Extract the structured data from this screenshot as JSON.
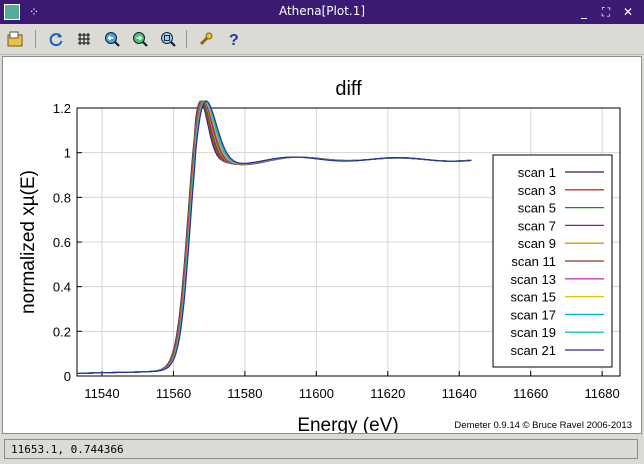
{
  "window": {
    "title": "Athena[Plot.1]"
  },
  "titlebar_buttons": {
    "minimize": "_",
    "maximize": "⛶",
    "close": "✕"
  },
  "toolbar": {
    "items": [
      {
        "name": "open-file-icon"
      },
      {
        "name": "refresh-icon"
      },
      {
        "name": "grid-icon"
      },
      {
        "name": "zoom-in-icon"
      },
      {
        "name": "zoom-out-icon"
      },
      {
        "name": "zoom-reset-icon"
      },
      {
        "name": "settings-wrench-icon"
      },
      {
        "name": "help-icon"
      }
    ]
  },
  "status": {
    "coords": "11653.1, 0.744366"
  },
  "colors": {
    "titlebar": "#3b1a73",
    "background": "#dcdad5",
    "plot_bg": "#ffffff",
    "grid": "#d6d6d6"
  },
  "chart_data": {
    "type": "line",
    "title": "diff",
    "xlabel": "Energy    (eV)",
    "ylabel": "normalized xµ(E)",
    "xlim": [
      11533,
      11685
    ],
    "ylim": [
      0,
      1.2
    ],
    "xticks": [
      11540,
      11560,
      11580,
      11600,
      11620,
      11640,
      11660,
      11680
    ],
    "yticks": [
      0,
      0.2,
      0.4,
      0.6,
      0.8,
      1,
      1.2
    ],
    "xtick_labels": [
      "11540",
      "11560",
      "11580",
      "11600",
      "11620",
      "11640",
      "11660",
      "11680"
    ],
    "ytick_labels": [
      "0",
      "0.2",
      "0.4",
      "0.6",
      "0.8",
      "1",
      "1.2"
    ],
    "grid": true,
    "legend_position": "right",
    "credit": "Demeter 0.9.14 © Bruce Ravel 2006-2013",
    "series": [
      {
        "name": "scan 1",
        "color": "#1a1a8c",
        "edge_shift": 0.0,
        "peak": 1.19,
        "damp": 0.0
      },
      {
        "name": "scan 3",
        "color": "#c03030",
        "edge_shift": 0.1,
        "peak": 1.19,
        "damp": 0.1
      },
      {
        "name": "scan 5",
        "color": "#1f8a1f",
        "edge_shift": 0.2,
        "peak": 1.19,
        "damp": 0.2
      },
      {
        "name": "scan 7",
        "color": "#8a1f8a",
        "edge_shift": 0.3,
        "peak": 1.19,
        "damp": 0.3
      },
      {
        "name": "scan 9",
        "color": "#c8a000",
        "edge_shift": 0.4,
        "peak": 1.19,
        "damp": 0.4
      },
      {
        "name": "scan 11",
        "color": "#8a3a1f",
        "edge_shift": 0.5,
        "peak": 1.19,
        "damp": 0.5
      },
      {
        "name": "scan 13",
        "color": "#c03cc0",
        "edge_shift": 0.6,
        "peak": 1.19,
        "damp": 0.6
      },
      {
        "name": "scan 15",
        "color": "#e6c000",
        "edge_shift": 0.7,
        "peak": 1.19,
        "damp": 0.7
      },
      {
        "name": "scan 17",
        "color": "#00b4d8",
        "edge_shift": 0.8,
        "peak": 1.19,
        "damp": 0.8
      },
      {
        "name": "scan 19",
        "color": "#20c0b0",
        "edge_shift": 0.9,
        "peak": 1.19,
        "damp": 0.9
      },
      {
        "name": "scan 21",
        "color": "#2a2a9a",
        "edge_shift": 1.0,
        "peak": 1.19,
        "damp": 1.0
      }
    ]
  }
}
